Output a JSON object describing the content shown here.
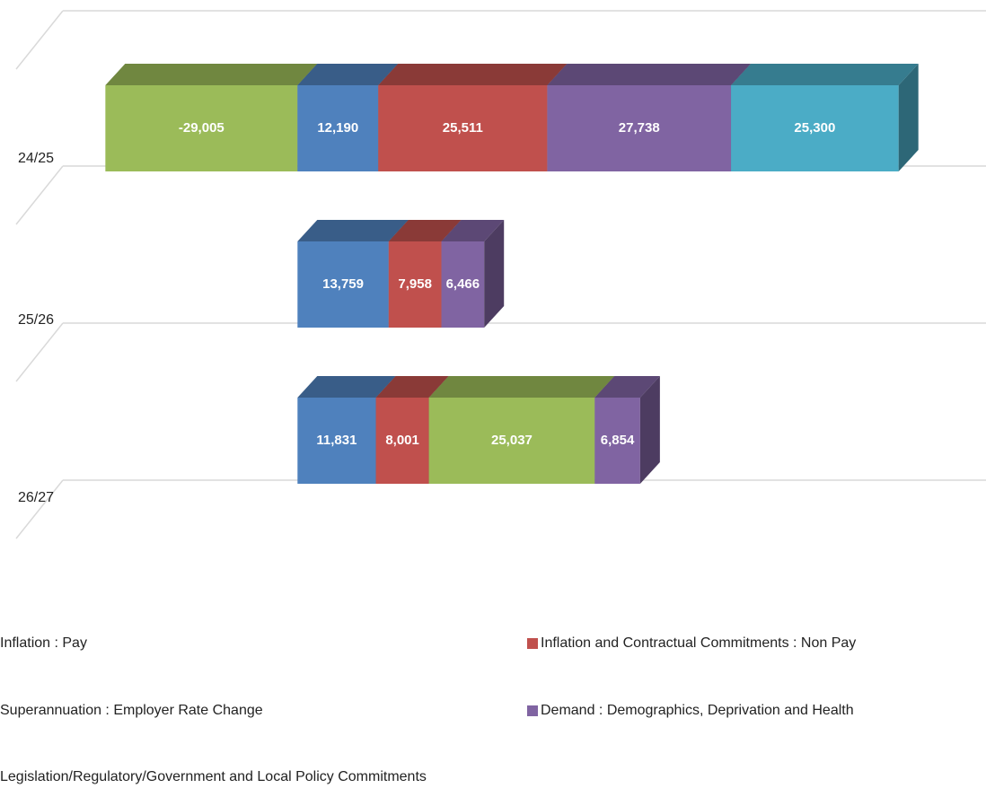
{
  "chart_data": {
    "type": "bar",
    "orientation": "horizontal",
    "stacked": true,
    "three_d": true,
    "categories": [
      "24/25",
      "25/26",
      "26/27"
    ],
    "series": [
      {
        "name": "Inflation : Pay",
        "color": "#4f81bd",
        "values": [
          12190,
          13759,
          11831
        ],
        "value_labels": [
          "12,190",
          "13,759",
          "11,831"
        ]
      },
      {
        "name": "Inflation and Contractual Commitments : Non Pay",
        "color": "#c0504d",
        "values": [
          25511,
          7958,
          8001
        ],
        "value_labels": [
          "25,511",
          "7,958",
          "8,001"
        ]
      },
      {
        "name": "Superannuation : Employer Rate Change",
        "color": "#9bbb59",
        "values": [
          -29005,
          null,
          25037
        ],
        "value_labels": [
          "-29,005",
          null,
          "25,037"
        ]
      },
      {
        "name": "Demand : Demographics, Deprivation and Health",
        "color": "#8064a2",
        "values": [
          27738,
          6466,
          6854
        ],
        "value_labels": [
          "27,738",
          "6,466",
          "6,854"
        ]
      },
      {
        "name": "Legislation/Regulatory/Government and Local Policy Commitments",
        "color": "#4bacc6",
        "values": [
          25300,
          null,
          null
        ],
        "value_labels": [
          "25,300",
          null,
          null
        ]
      }
    ],
    "xlim": [
      -30000,
      100000
    ],
    "legend": "bottom"
  }
}
